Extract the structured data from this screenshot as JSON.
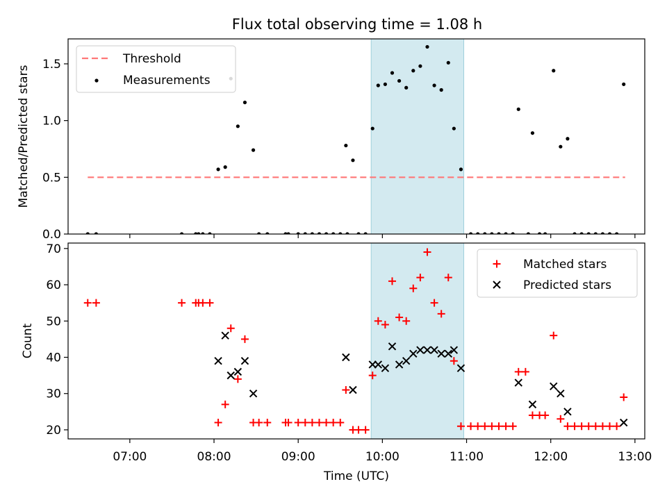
{
  "figure": {
    "title": "Flux total observing time = 1.08 h"
  },
  "chart_data": [
    {
      "type": "scatter",
      "panel": "top",
      "ylabel": "Matched/Predicted stars",
      "xlabel": "",
      "xlim": [
        "06:16",
        "13:07"
      ],
      "ylim": [
        0,
        1.72
      ],
      "yticks": [
        0.0,
        0.5,
        1.0,
        1.5
      ],
      "ytick_labels": [
        "0.0",
        "0.5",
        "1.0",
        "1.5"
      ],
      "xticks": [
        "07:00",
        "08:00",
        "09:00",
        "10:00",
        "11:00",
        "12:00",
        "13:00"
      ],
      "grid": false,
      "legend": {
        "location": "top-left",
        "entries": [
          "Threshold",
          "Measurements"
        ]
      },
      "shaded_region": {
        "x_start": "09:52",
        "x_end": "10:58",
        "color": "#d3eaf0"
      },
      "threshold": {
        "name": "Threshold",
        "y": 0.5,
        "x_start": "06:30",
        "x_end": "12:53",
        "color": "#ff7777",
        "style": "dashed"
      },
      "series": [
        {
          "name": "Measurements",
          "color": "#000000",
          "points": [
            [
              "06:30",
              0
            ],
            [
              "06:36",
              0
            ],
            [
              "07:37",
              0
            ],
            [
              "07:47",
              0
            ],
            [
              "07:49",
              0
            ],
            [
              "07:52",
              0
            ],
            [
              "07:57",
              0
            ],
            [
              "08:03",
              0.57
            ],
            [
              "08:08",
              0.59
            ],
            [
              "08:12",
              1.37
            ],
            [
              "08:17",
              0.95
            ],
            [
              "08:22",
              1.16
            ],
            [
              "08:28",
              0.74
            ],
            [
              "08:32",
              0
            ],
            [
              "08:38",
              0
            ],
            [
              "08:51",
              0
            ],
            [
              "08:53",
              0
            ],
            [
              "09:00",
              0
            ],
            [
              "09:05",
              0
            ],
            [
              "09:10",
              0
            ],
            [
              "09:15",
              0
            ],
            [
              "09:20",
              0
            ],
            [
              "09:25",
              0
            ],
            [
              "09:30",
              0
            ],
            [
              "09:35",
              0
            ],
            [
              "09:43",
              0
            ],
            [
              "09:48",
              0
            ],
            [
              "09:34",
              0.78
            ],
            [
              "09:39",
              0.65
            ],
            [
              "09:53",
              0.93
            ],
            [
              "09:57",
              1.31
            ],
            [
              "10:02",
              1.32
            ],
            [
              "10:07",
              1.42
            ],
            [
              "10:12",
              1.35
            ],
            [
              "10:17",
              1.29
            ],
            [
              "10:22",
              1.44
            ],
            [
              "10:27",
              1.48
            ],
            [
              "10:32",
              1.65
            ],
            [
              "10:37",
              1.31
            ],
            [
              "10:42",
              1.27
            ],
            [
              "10:47",
              1.51
            ],
            [
              "10:51",
              0.93
            ],
            [
              "10:56",
              0.57
            ],
            [
              "11:03",
              0
            ],
            [
              "11:08",
              0
            ],
            [
              "11:13",
              0
            ],
            [
              "11:18",
              0
            ],
            [
              "11:23",
              0
            ],
            [
              "11:28",
              0
            ],
            [
              "11:33",
              0
            ],
            [
              "11:37",
              1.1
            ],
            [
              "11:44",
              0
            ],
            [
              "11:47",
              0.89
            ],
            [
              "11:52",
              0
            ],
            [
              "11:56",
              0
            ],
            [
              "12:02",
              1.44
            ],
            [
              "12:07",
              0.77
            ],
            [
              "12:12",
              0.84
            ],
            [
              "12:17",
              0
            ],
            [
              "12:22",
              0
            ],
            [
              "12:27",
              0
            ],
            [
              "12:32",
              0
            ],
            [
              "12:37",
              0
            ],
            [
              "12:42",
              0
            ],
            [
              "12:47",
              0
            ],
            [
              "12:52",
              1.32
            ]
          ]
        }
      ]
    },
    {
      "type": "scatter",
      "panel": "bottom",
      "xlabel": "Time (UTC)",
      "ylabel": "Count",
      "xlim": [
        "06:16",
        "13:07"
      ],
      "ylim": [
        17.5,
        71.5
      ],
      "yticks": [
        20,
        30,
        40,
        50,
        60,
        70
      ],
      "ytick_labels": [
        "20",
        "30",
        "40",
        "50",
        "60",
        "70"
      ],
      "xticks": [
        "07:00",
        "08:00",
        "09:00",
        "10:00",
        "11:00",
        "12:00",
        "13:00"
      ],
      "grid": false,
      "legend": {
        "location": "top-right",
        "entries": [
          "Matched stars",
          "Predicted stars"
        ]
      },
      "shaded_region": {
        "x_start": "09:52",
        "x_end": "10:58",
        "color": "#d3eaf0"
      },
      "series": [
        {
          "name": "Matched stars",
          "marker": "+",
          "color": "#ff0000",
          "points": [
            [
              "06:30",
              55
            ],
            [
              "06:36",
              55
            ],
            [
              "07:37",
              55
            ],
            [
              "07:47",
              55
            ],
            [
              "07:49",
              55
            ],
            [
              "07:52",
              55
            ],
            [
              "07:57",
              55
            ],
            [
              "08:03",
              22
            ],
            [
              "08:08",
              27
            ],
            [
              "08:12",
              48
            ],
            [
              "08:17",
              34
            ],
            [
              "08:22",
              45
            ],
            [
              "08:28",
              22
            ],
            [
              "08:32",
              22
            ],
            [
              "08:38",
              22
            ],
            [
              "08:51",
              22
            ],
            [
              "08:53",
              22
            ],
            [
              "09:00",
              22
            ],
            [
              "09:05",
              22
            ],
            [
              "09:10",
              22
            ],
            [
              "09:15",
              22
            ],
            [
              "09:20",
              22
            ],
            [
              "09:25",
              22
            ],
            [
              "09:30",
              22
            ],
            [
              "09:34",
              31
            ],
            [
              "09:39",
              20
            ],
            [
              "09:43",
              20
            ],
            [
              "09:48",
              20
            ],
            [
              "09:53",
              35
            ],
            [
              "09:57",
              50
            ],
            [
              "10:02",
              49
            ],
            [
              "10:07",
              61
            ],
            [
              "10:12",
              51
            ],
            [
              "10:17",
              50
            ],
            [
              "10:22",
              59
            ],
            [
              "10:27",
              62
            ],
            [
              "10:32",
              69
            ],
            [
              "10:37",
              55
            ],
            [
              "10:42",
              52
            ],
            [
              "10:47",
              62
            ],
            [
              "10:51",
              39
            ],
            [
              "10:56",
              21
            ],
            [
              "11:03",
              21
            ],
            [
              "11:08",
              21
            ],
            [
              "11:13",
              21
            ],
            [
              "11:18",
              21
            ],
            [
              "11:23",
              21
            ],
            [
              "11:28",
              21
            ],
            [
              "11:33",
              21
            ],
            [
              "11:37",
              36
            ],
            [
              "11:42",
              36
            ],
            [
              "11:47",
              24
            ],
            [
              "11:52",
              24
            ],
            [
              "11:56",
              24
            ],
            [
              "12:02",
              46
            ],
            [
              "12:07",
              23
            ],
            [
              "12:12",
              21
            ],
            [
              "12:17",
              21
            ],
            [
              "12:22",
              21
            ],
            [
              "12:27",
              21
            ],
            [
              "12:32",
              21
            ],
            [
              "12:37",
              21
            ],
            [
              "12:42",
              21
            ],
            [
              "12:47",
              21
            ],
            [
              "12:52",
              29
            ]
          ]
        },
        {
          "name": "Predicted stars",
          "marker": "x",
          "color": "#000000",
          "points": [
            [
              "08:03",
              39
            ],
            [
              "08:08",
              46
            ],
            [
              "08:12",
              35
            ],
            [
              "08:17",
              36
            ],
            [
              "08:22",
              39
            ],
            [
              "08:28",
              30
            ],
            [
              "09:34",
              40
            ],
            [
              "09:39",
              31
            ],
            [
              "09:53",
              38
            ],
            [
              "09:57",
              38
            ],
            [
              "10:02",
              37
            ],
            [
              "10:07",
              43
            ],
            [
              "10:12",
              38
            ],
            [
              "10:17",
              39
            ],
            [
              "10:22",
              41
            ],
            [
              "10:27",
              42
            ],
            [
              "10:32",
              42
            ],
            [
              "10:37",
              42
            ],
            [
              "10:42",
              41
            ],
            [
              "10:47",
              41
            ],
            [
              "10:51",
              42
            ],
            [
              "10:56",
              37
            ],
            [
              "11:37",
              33
            ],
            [
              "11:47",
              27
            ],
            [
              "12:02",
              32
            ],
            [
              "12:07",
              30
            ],
            [
              "12:12",
              25
            ],
            [
              "12:52",
              22
            ]
          ]
        }
      ]
    }
  ]
}
